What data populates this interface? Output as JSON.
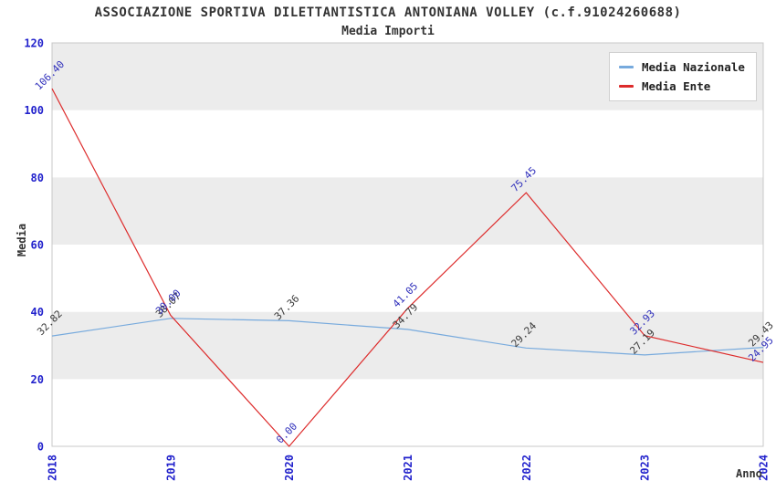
{
  "chart_data": {
    "type": "line",
    "title": "ASSOCIAZIONE SPORTIVA DILETTANTISTICA ANTONIANA VOLLEY (c.f.91024260688)",
    "subtitle": "Media Importi",
    "xlabel": "Anno",
    "ylabel": "Media",
    "categories": [
      "2018",
      "2019",
      "2020",
      "2021",
      "2022",
      "2023",
      "2024"
    ],
    "series": [
      {
        "name": "Media Nazionale",
        "color": "#77aadd",
        "label_color": "#3a3a3a",
        "values": [
          32.82,
          38.07,
          37.36,
          34.79,
          29.24,
          27.19,
          29.43
        ]
      },
      {
        "name": "Media Ente",
        "color": "#dd2b2b",
        "label_color": "#2f2fbb",
        "values": [
          106.4,
          39.0,
          0.0,
          41.05,
          75.45,
          32.93,
          24.95
        ]
      }
    ],
    "ylim": [
      0,
      120
    ],
    "yticks": [
      0,
      20,
      40,
      60,
      80,
      100,
      120
    ],
    "tick_label_color": "#2222cc",
    "band_colors": [
      "#ffffff",
      "#ececec"
    ],
    "plot_border_color": "#c8c8c8",
    "legend_position": "top-right",
    "grid": "banded-horizontal",
    "value_label_decimals": 2
  }
}
